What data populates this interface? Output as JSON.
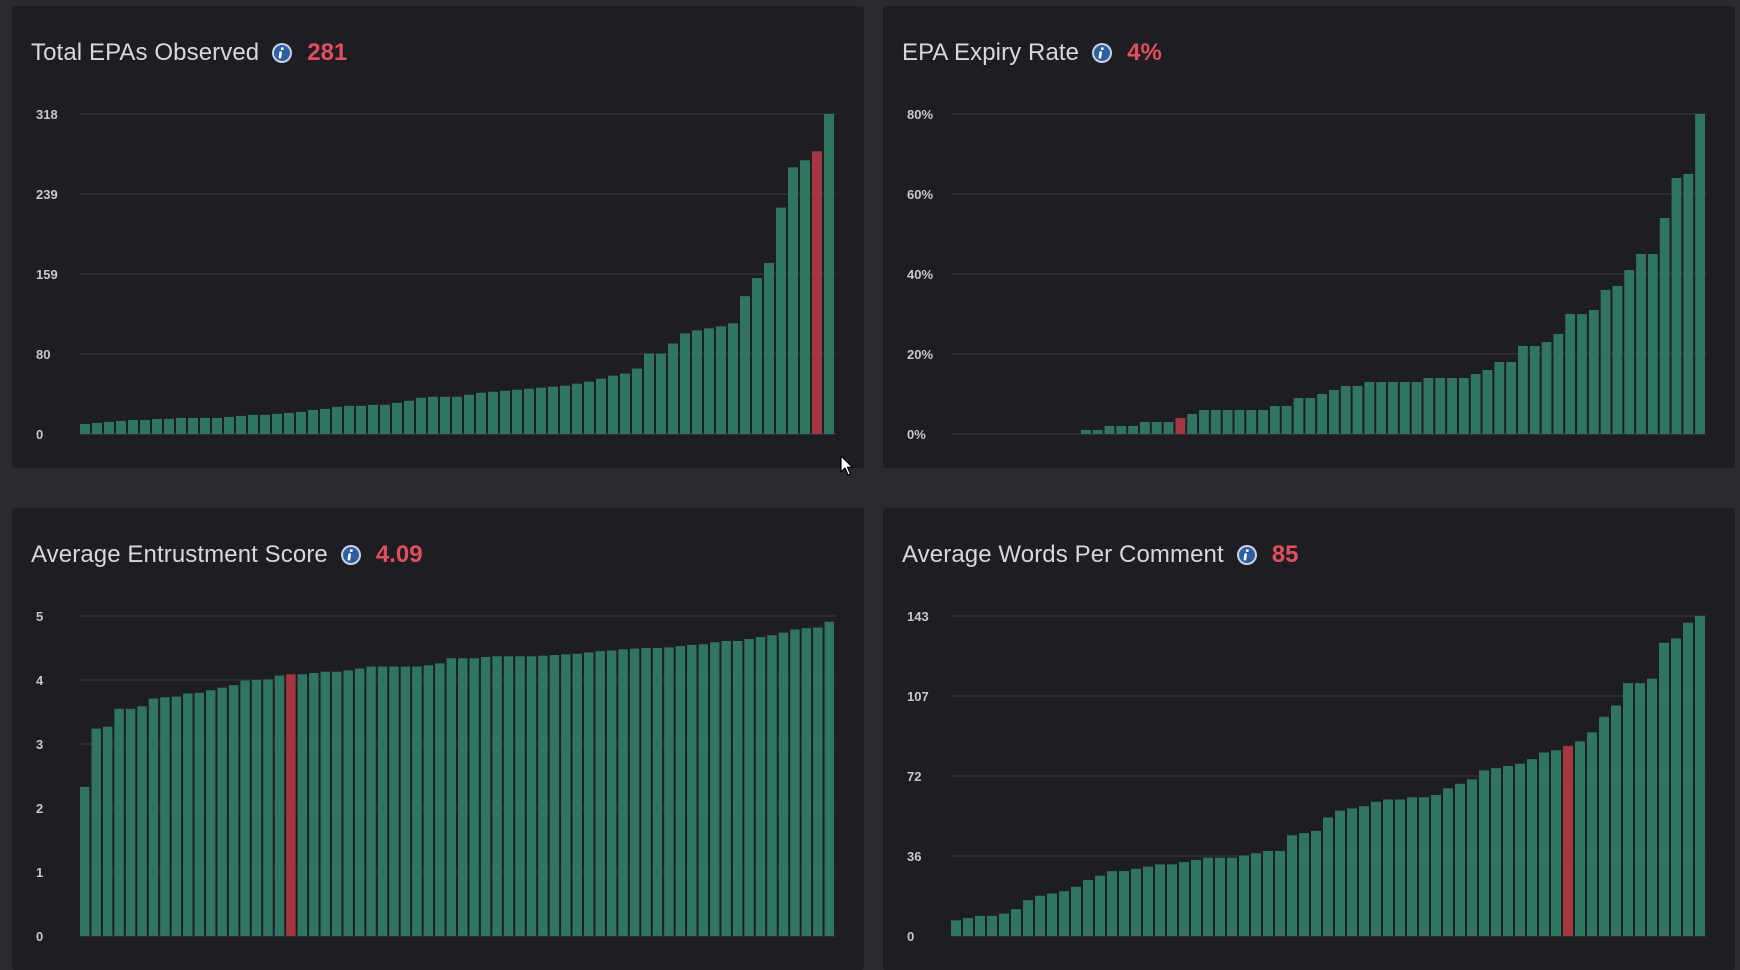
{
  "colors": {
    "bar": "#2f7560",
    "highlight": "#a3363f",
    "value": "#e0505c",
    "grid": "#3a3a42",
    "tick": "#c8c8cc"
  },
  "panels": [
    {
      "title": "Total EPAs Observed",
      "info_icon": "info-icon",
      "value": "281",
      "chart_data": {
        "type": "bar",
        "title": "Total EPAs Observed",
        "yticks": [
          "318",
          "239",
          "159",
          "80",
          "0"
        ],
        "ylim": [
          0,
          318
        ],
        "highlight_index": 61,
        "values": [
          10,
          11,
          12,
          13,
          14,
          14,
          15,
          15,
          16,
          16,
          16,
          16,
          17,
          18,
          19,
          19,
          20,
          21,
          22,
          24,
          25,
          27,
          28,
          28,
          29,
          29,
          31,
          33,
          36,
          37,
          37,
          37,
          39,
          41,
          42,
          43,
          44,
          45,
          46,
          47,
          48,
          50,
          52,
          55,
          58,
          60,
          65,
          80,
          80,
          90,
          100,
          103,
          105,
          107,
          110,
          137,
          155,
          170,
          225,
          265,
          272,
          281,
          318
        ]
      }
    },
    {
      "title": "EPA Expiry Rate",
      "info_icon": "info-icon",
      "value": "4%",
      "chart_data": {
        "type": "bar",
        "title": "EPA Expiry Rate",
        "yticks": [
          "80%",
          "60%",
          "40%",
          "20%",
          "0%"
        ],
        "ylim": [
          0,
          80
        ],
        "highlight_index": 19,
        "values": [
          0,
          0,
          0,
          0,
          0,
          0,
          0,
          0,
          0,
          0,
          0,
          1,
          1,
          2,
          2,
          2,
          3,
          3,
          3,
          4,
          5,
          6,
          6,
          6,
          6,
          6,
          6,
          7,
          7,
          9,
          9,
          10,
          11,
          12,
          12,
          13,
          13,
          13,
          13,
          13,
          14,
          14,
          14,
          14,
          15,
          16,
          18,
          18,
          22,
          22,
          23,
          25,
          30,
          30,
          31,
          36,
          37,
          41,
          45,
          45,
          54,
          64,
          65,
          80
        ]
      }
    },
    {
      "title": "Average Entrustment Score",
      "info_icon": "info-icon",
      "value": "4.09",
      "chart_data": {
        "type": "bar",
        "title": "Average Entrustment Score",
        "yticks": [
          "5",
          "4",
          "3",
          "2",
          "1",
          "0"
        ],
        "ylim": [
          0,
          5
        ],
        "highlight_index": 18,
        "values": [
          2.33,
          3.24,
          3.27,
          3.55,
          3.55,
          3.59,
          3.71,
          3.73,
          3.74,
          3.79,
          3.8,
          3.84,
          3.88,
          3.92,
          3.99,
          4.0,
          4.01,
          4.07,
          4.09,
          4.09,
          4.11,
          4.13,
          4.13,
          4.15,
          4.18,
          4.21,
          4.21,
          4.21,
          4.21,
          4.21,
          4.23,
          4.26,
          4.34,
          4.34,
          4.34,
          4.36,
          4.37,
          4.37,
          4.37,
          4.37,
          4.38,
          4.39,
          4.4,
          4.41,
          4.43,
          4.45,
          4.46,
          4.48,
          4.49,
          4.5,
          4.5,
          4.51,
          4.53,
          4.55,
          4.56,
          4.59,
          4.61,
          4.61,
          4.64,
          4.67,
          4.7,
          4.74,
          4.79,
          4.81,
          4.82,
          4.91
        ]
      }
    },
    {
      "title": "Average Words Per Comment",
      "info_icon": "info-icon",
      "value": "85",
      "chart_data": {
        "type": "bar",
        "title": "Average Words Per Comment",
        "yticks": [
          "143",
          "107",
          "72",
          "36",
          "0"
        ],
        "ylim": [
          0,
          143
        ],
        "highlight_index": 51,
        "values": [
          7,
          8,
          9,
          9,
          10,
          12,
          16,
          18,
          19,
          20,
          22,
          25,
          27,
          29,
          29,
          30,
          31,
          32,
          32,
          33,
          34,
          35,
          35,
          35,
          36,
          37,
          38,
          38,
          45,
          46,
          47,
          53,
          56,
          57,
          58,
          60,
          61,
          61,
          62,
          62,
          63,
          66,
          68,
          70,
          74,
          75,
          76,
          77,
          79,
          82,
          83,
          85,
          87,
          91,
          98,
          103,
          113,
          113,
          115,
          131,
          133,
          140,
          143
        ]
      }
    }
  ]
}
